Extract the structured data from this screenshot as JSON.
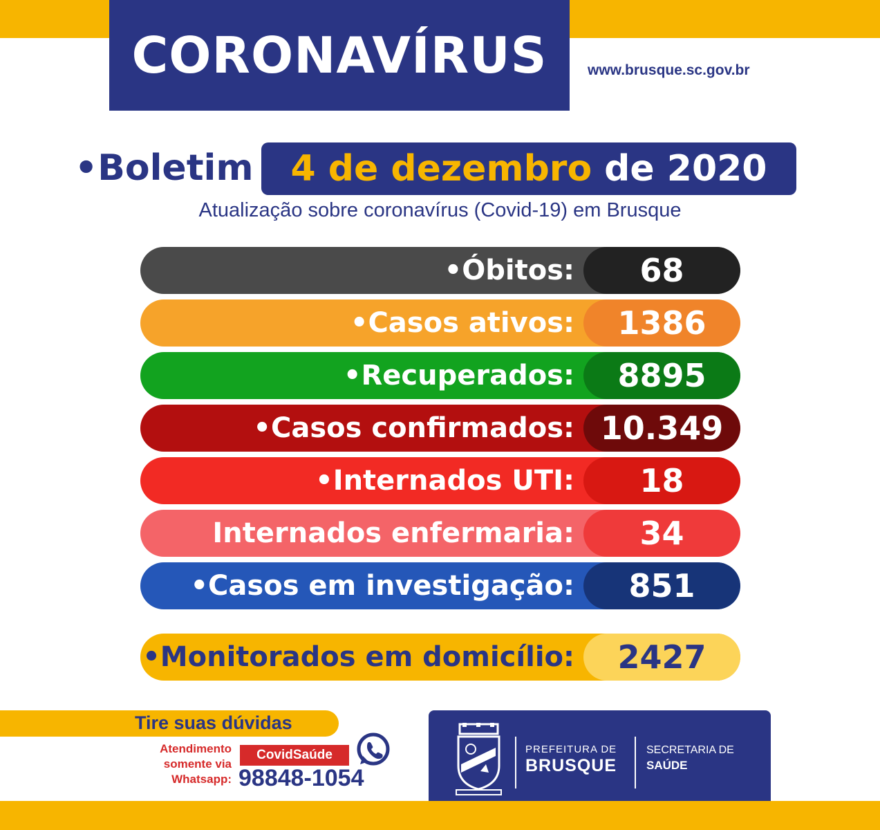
{
  "header": {
    "title": "CORONAVÍRUS",
    "website": "www.brusque.sc.gov.br"
  },
  "bulletin": {
    "label": "•Boletim",
    "date_main": "4 de dezembro",
    "date_year": "de 2020",
    "subtitle": "Atualização sobre coronavírus (Covid-19) em Brusque"
  },
  "stats": [
    {
      "label": "•Óbitos:",
      "value": "68",
      "bar_color": "#4a4a4a",
      "value_color": "#222222",
      "text_color": "#ffffff"
    },
    {
      "label": "•Casos ativos:",
      "value": "1386",
      "bar_color": "#f6a32a",
      "value_color": "#f0842a",
      "text_color": "#ffffff"
    },
    {
      "label": "•Recuperados:",
      "value": "8895",
      "bar_color": "#12a31f",
      "value_color": "#0b7a16",
      "text_color": "#ffffff"
    },
    {
      "label": "•Casos confirmados:",
      "value": "10.349",
      "bar_color": "#b30f0f",
      "value_color": "#6e0a0a",
      "text_color": "#ffffff"
    },
    {
      "label": "•Internados UTI:",
      "value": "18",
      "bar_color": "#f22a24",
      "value_color": "#d81812",
      "text_color": "#ffffff"
    },
    {
      "label": "Internados enfermaria:",
      "value": "34",
      "bar_color": "#f46468",
      "value_color": "#ef3a3a",
      "text_color": "#ffffff"
    },
    {
      "label": "•Casos em investigação:",
      "value": "851",
      "bar_color": "#2557b8",
      "value_color": "#173478",
      "text_color": "#ffffff"
    },
    {
      "label": "•Monitorados em domicílio:",
      "value": "2427",
      "bar_color": "#f7b500",
      "value_color": "#fcd459",
      "text_color": "#2a3584"
    }
  ],
  "footer": {
    "help_title": "Tire suas dúvidas",
    "attend_line1": "Atendimento",
    "attend_line2": "somente via",
    "attend_line3": "Whatsapp:",
    "covid_badge": "CovidSaúde",
    "phone": "98848-1054",
    "icon": "whatsapp-icon",
    "pref_small": "PREFEITURA DE",
    "pref_big": "BRUSQUE",
    "sec_small": "SECRETARIA DE",
    "sec_big": "SAÚDE",
    "crest_icon": "crest-icon"
  },
  "colors": {
    "brand_blue": "#2a3584",
    "brand_yellow": "#f7b500",
    "red": "#d62a2a"
  }
}
